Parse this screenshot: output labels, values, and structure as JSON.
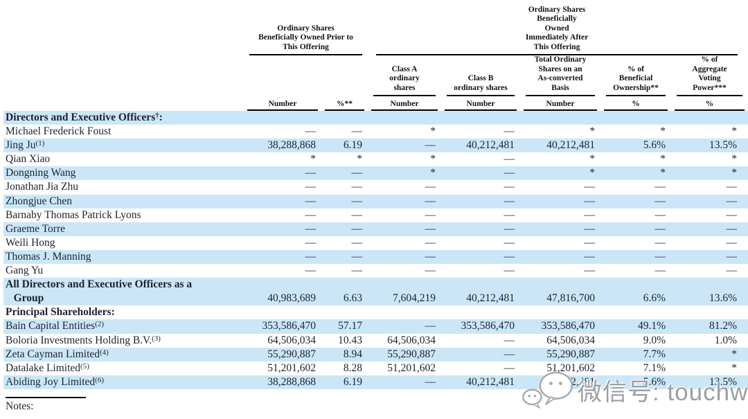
{
  "page": {
    "background": "#ffffff",
    "row_highlight": "#cbe7f7",
    "text_color": "#1e2130",
    "rule_color": "#000000",
    "watermark_color": "#9c9ea1"
  },
  "table": {
    "group_headers": [
      "Ordinary Shares\nBeneficially Owned Prior to\nThis Offering",
      "Ordinary Shares\nBeneficially\nOwned\nImmediately After\nThis Offering"
    ],
    "sub_headers": [
      "Class A\nordinary\nshares",
      "Class B\nordinary shares",
      "Total Ordinary\nShares on an\nAs-converted\nBasis",
      "% of\nBeneficial\nOwnership**",
      "% of\nAggregate\nVoting\nPower***"
    ],
    "col_headers": [
      "Number",
      "%**",
      "Number",
      "Number",
      "Number",
      "%",
      "%"
    ],
    "rows": [
      {
        "name": "Directors and Executive Officers",
        "sup": "†",
        "after": ":",
        "bold": true,
        "highlight": true,
        "values": [
          "",
          "",
          "",
          "",
          "",
          "",
          ""
        ]
      },
      {
        "name": "Michael Frederick Foust",
        "highlight": false,
        "values": [
          "—",
          "—",
          "*",
          "—",
          "*",
          "*",
          "*"
        ]
      },
      {
        "name": "Jing Ju",
        "sup": "(1)",
        "highlight": true,
        "values": [
          "38,288,868",
          "6.19",
          "—",
          "40,212,481",
          "40,212,481",
          "5.6%",
          "13.5%"
        ]
      },
      {
        "name": "Qian Xiao",
        "highlight": false,
        "values": [
          "*",
          "*",
          "*",
          "—",
          "*",
          "*",
          "*"
        ]
      },
      {
        "name": "Dongning Wang",
        "highlight": true,
        "values": [
          "—",
          "—",
          "*",
          "—",
          "*",
          "*",
          "*"
        ]
      },
      {
        "name": "Jonathan Jia Zhu",
        "highlight": false,
        "values": [
          "—",
          "—",
          "—",
          "—",
          "—",
          "—",
          "—"
        ]
      },
      {
        "name": "Zhongjue Chen",
        "highlight": true,
        "values": [
          "—",
          "—",
          "—",
          "—",
          "—",
          "—",
          "—"
        ]
      },
      {
        "name": "Barnaby Thomas Patrick Lyons",
        "highlight": false,
        "values": [
          "—",
          "—",
          "—",
          "—",
          "—",
          "—",
          "—"
        ]
      },
      {
        "name": "Graeme Torre",
        "highlight": true,
        "values": [
          "—",
          "—",
          "—",
          "—",
          "—",
          "—",
          "—"
        ]
      },
      {
        "name": "Weili Hong",
        "highlight": false,
        "values": [
          "—",
          "—",
          "—",
          "—",
          "—",
          "—",
          "—"
        ]
      },
      {
        "name": "Thomas J. Manning",
        "highlight": true,
        "values": [
          "—",
          "—",
          "—",
          "—",
          "—",
          "—",
          "—"
        ]
      },
      {
        "name": "Gang Yu",
        "highlight": false,
        "values": [
          "—",
          "—",
          "—",
          "—",
          "—",
          "—",
          "—"
        ]
      },
      {
        "name": "All Directors and Executive Officers as a\n   Group",
        "bold": true,
        "highlight": true,
        "values": [
          "40,983,689",
          "6.63",
          "7,604,219",
          "40,212,481",
          "47,816,700",
          "6.6%",
          "13.6%"
        ]
      },
      {
        "name": "Principal Shareholders",
        "after": ":",
        "bold": true,
        "highlight": false,
        "values": [
          "",
          "",
          "",
          "",
          "",
          "",
          ""
        ]
      },
      {
        "name": "Bain Capital Entities",
        "sup": "(2)",
        "highlight": true,
        "values": [
          "353,586,470",
          "57.17",
          "—",
          "353,586,470",
          "353,586,470",
          "49.1%",
          "81.2%"
        ]
      },
      {
        "name": "Boloria Investments Holding B.V.",
        "sup": "(3)",
        "highlight": false,
        "values": [
          "64,506,034",
          "10.43",
          "64,506,034",
          "—",
          "64,506,034",
          "9.0%",
          "1.0%"
        ]
      },
      {
        "name": "Zeta Cayman Limited",
        "sup": "(4)",
        "highlight": true,
        "values": [
          "55,290,887",
          "8.94",
          "55,290,887",
          "—",
          "55,290,887",
          "7.7%",
          "*"
        ]
      },
      {
        "name": "Datalake Limited",
        "sup": "(5)",
        "highlight": false,
        "values": [
          "51,201,602",
          "8.28",
          "51,201,602",
          "—",
          "51,201,602",
          "7.1%",
          "*"
        ]
      },
      {
        "name": "Abiding Joy Limited",
        "sup": "(6)",
        "highlight": true,
        "values": [
          "38,288,868",
          "6.19",
          "—",
          "40,212,481",
          "40,212,481",
          "5.6%",
          "13.5%"
        ]
      }
    ]
  },
  "notes_label": "Notes:",
  "watermark": {
    "text": "微信号: touchweb",
    "icon": "wechat-icon"
  }
}
